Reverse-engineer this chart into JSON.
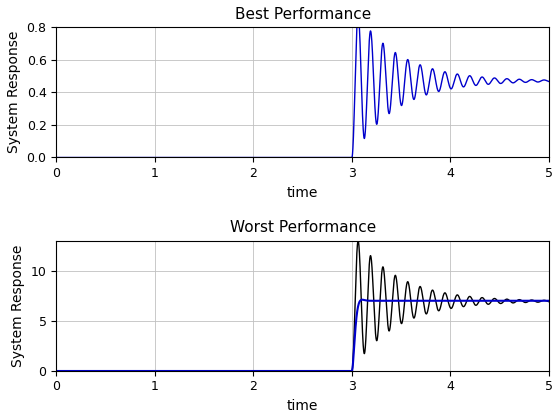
{
  "title1": "Best Performance",
  "title2": "Worst Performance",
  "xlabel": "time",
  "ylabel": "System Response",
  "xlim": [
    0,
    5
  ],
  "ylim1": [
    0,
    0.8
  ],
  "ylim2": [
    0,
    13
  ],
  "step_time": 3.0,
  "best_steady_state": 0.47,
  "best_omega": 50,
  "best_zeta": 0.045,
  "worst_steady_state_blue": 7.0,
  "worst_steady_state_black": 7.5,
  "worst_omega": 50,
  "worst_zeta_black": 0.045,
  "worst_zeta_blue": 0.8,
  "worst_peak_scale": 13.0,
  "color_blue": "#0000CC",
  "color_black": "#000000",
  "figsize": [
    5.6,
    4.2
  ],
  "dpi": 100,
  "title_fontsize": 11,
  "label_fontsize": 10,
  "tick_fontsize": 9
}
